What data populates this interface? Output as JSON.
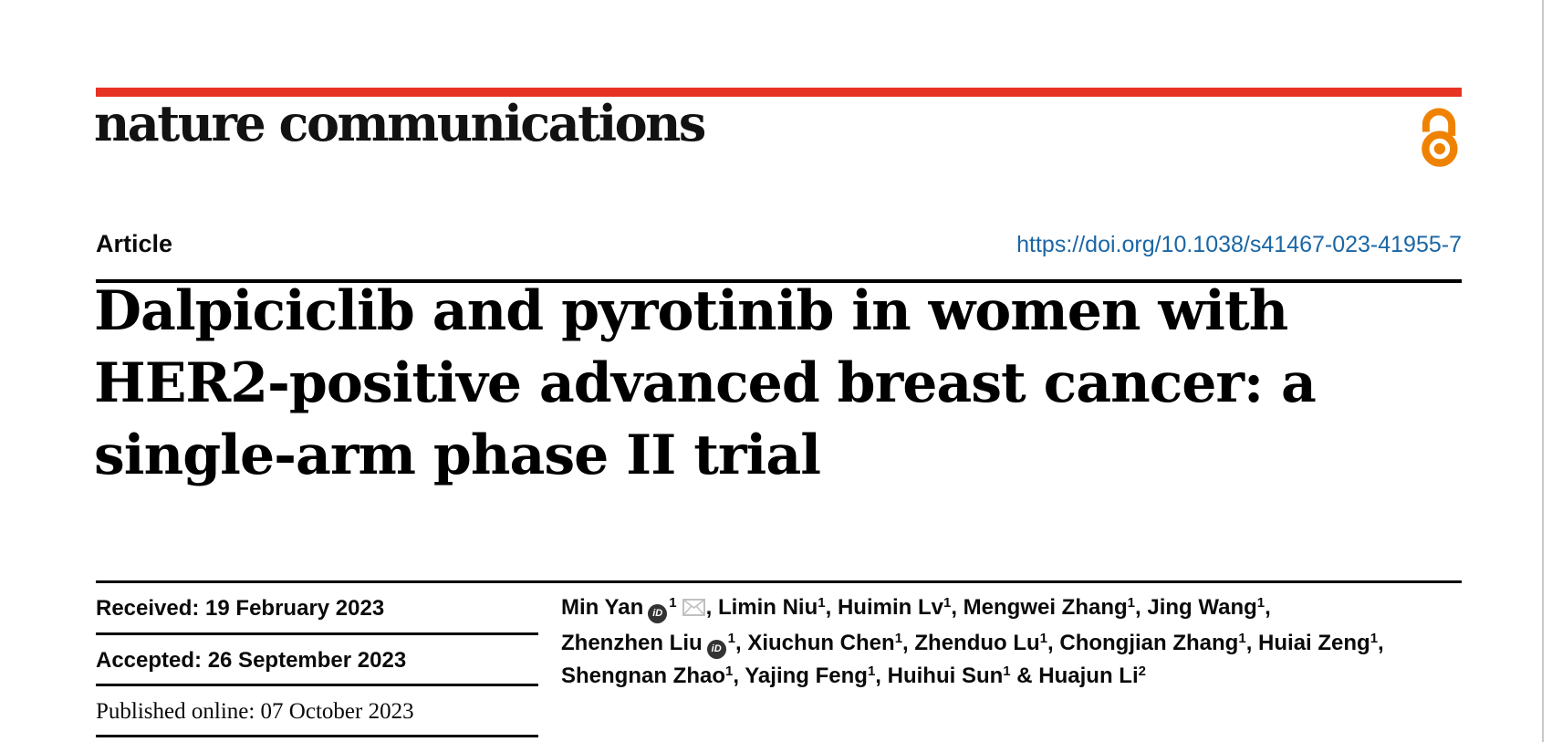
{
  "page": {
    "background": "#ffffff",
    "edge_line_color": "#c9c9c9"
  },
  "masthead": {
    "journal_name": "nature communications",
    "bar_color": "#e63323",
    "open_access_color": "#ef8200"
  },
  "article_header": {
    "type_label": "Article",
    "doi_url": "https://doi.org/10.1038/s41467-023-41955-7",
    "doi_color": "#1a66a5",
    "title_lines": [
      "Dalpiciclib and pyrotinib in women with",
      "HER2-positive advanced breast cancer: a",
      "single-arm phase II trial"
    ]
  },
  "history": {
    "items": [
      {
        "text": "Received: 19 February 2023"
      },
      {
        "text": "Accepted: 26 September 2023"
      },
      {
        "text": "Published online: 07 October 2023"
      }
    ]
  },
  "icons": {
    "orcid_label": "iD",
    "email_icon_color": "#c0c0c0"
  },
  "authors": {
    "lines": [
      {
        "parts": [
          {
            "name": "Min Yan",
            "orcid": true,
            "sup": "1",
            "email": true,
            "sep": ", "
          },
          {
            "name": "Limin Niu",
            "sup": "1",
            "sep": ", "
          },
          {
            "name": "Huimin Lv",
            "sup": "1",
            "sep": ", "
          },
          {
            "name": "Mengwei Zhang",
            "sup": "1",
            "sep": ", "
          },
          {
            "name": "Jing Wang",
            "sup": "1",
            "sep": ","
          }
        ]
      },
      {
        "parts": [
          {
            "name": "Zhenzhen Liu",
            "orcid": true,
            "sup": "1",
            "sep": ", "
          },
          {
            "name": "Xiuchun Chen",
            "sup": "1",
            "sep": ", "
          },
          {
            "name": "Zhenduo Lu",
            "sup": "1",
            "sep": ", "
          },
          {
            "name": "Chongjian Zhang",
            "sup": "1",
            "sep": ", "
          },
          {
            "name": "Huiai Zeng",
            "sup": "1",
            "sep": ","
          }
        ]
      },
      {
        "parts": [
          {
            "name": "Shengnan Zhao",
            "sup": "1",
            "sep": ", "
          },
          {
            "name": "Yajing Feng",
            "sup": "1",
            "sep": ", "
          },
          {
            "name": "Huihui Sun",
            "sup": "1",
            "sep": " & "
          },
          {
            "name": "Huajun Li",
            "sup": "2",
            "sep": ""
          }
        ]
      }
    ]
  }
}
